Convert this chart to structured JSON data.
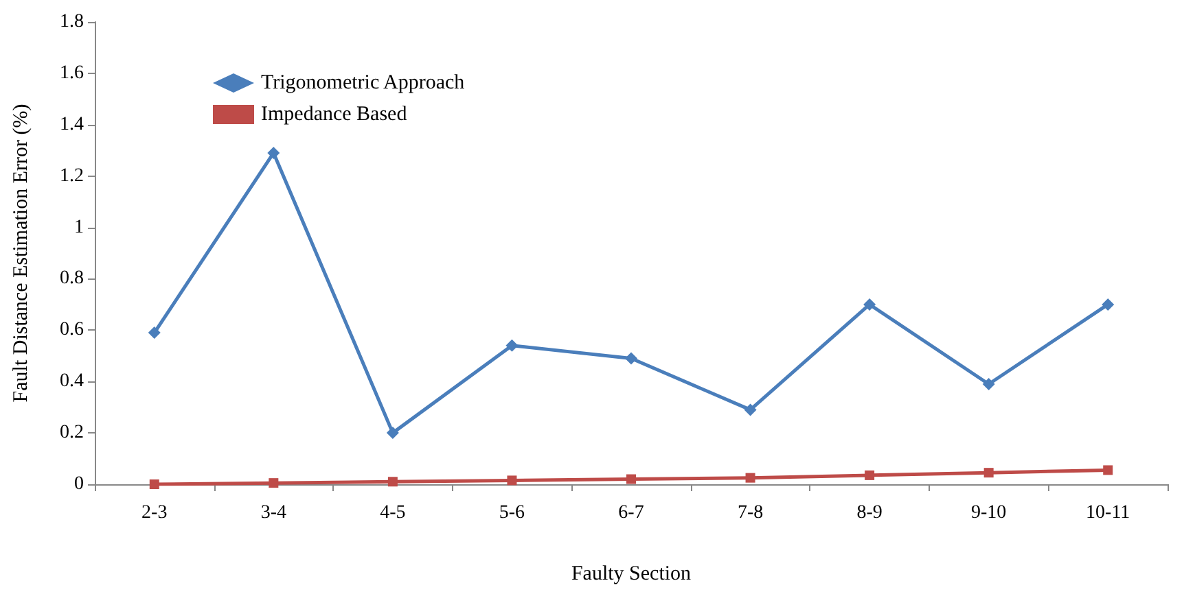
{
  "chart_data": {
    "type": "line",
    "xlabel": "Faulty Section",
    "ylabel": "Fault Distance Estimation Error (%)",
    "categories": [
      "2-3",
      "3-4",
      "4-5",
      "5-6",
      "6-7",
      "7-8",
      "8-9",
      "9-10",
      "10-11"
    ],
    "series": [
      {
        "name": "Trigonometric Approach",
        "color": "#4a7ebb",
        "marker": "diamond",
        "values": [
          0.59,
          1.29,
          0.2,
          0.54,
          0.49,
          0.29,
          0.7,
          0.39,
          0.7
        ]
      },
      {
        "name": "Impedance Based",
        "color": "#be4b48",
        "marker": "square",
        "values": [
          0,
          0.005,
          0.01,
          0.015,
          0.02,
          0.025,
          0.035,
          0.045,
          0.055
        ]
      }
    ],
    "ylim": [
      0,
      1.8
    ],
    "yticks": [
      0,
      0.2,
      0.4,
      0.6,
      0.8,
      1,
      1.2,
      1.4,
      1.6,
      1.8
    ],
    "grid": false,
    "legend": "top left"
  }
}
